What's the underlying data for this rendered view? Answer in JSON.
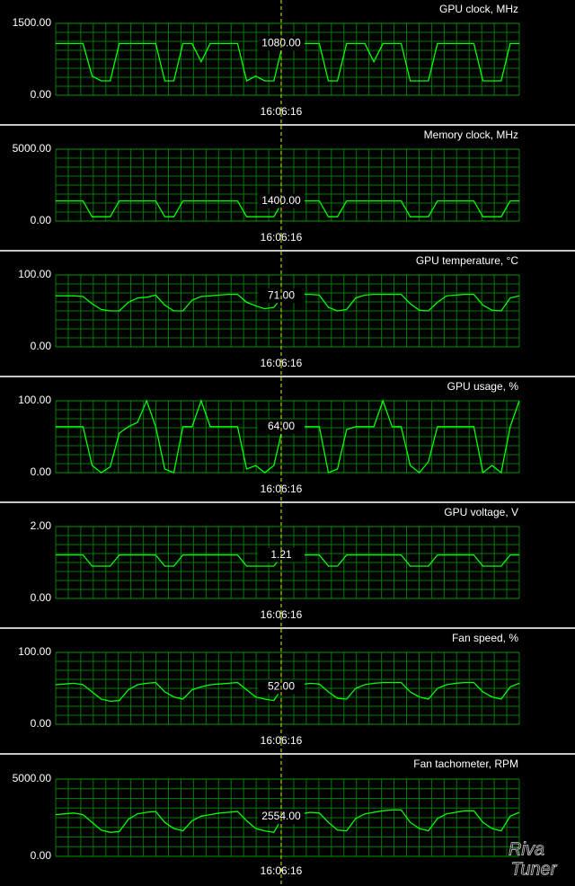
{
  "chart_data": [
    {
      "type": "line",
      "title": "GPU clock, MHz",
      "color": "#00ff00",
      "ylim": [
        0,
        1500
      ],
      "yticks": [
        {
          "value": 0,
          "label": "0.00"
        },
        {
          "value": 1500,
          "label": "1500.00"
        }
      ],
      "values": [
        1080,
        1080,
        1080,
        1080,
        400,
        300,
        300,
        1080,
        1080,
        1080,
        1080,
        1080,
        300,
        300,
        1080,
        1080,
        700,
        1080,
        1080,
        1080,
        1080,
        300,
        400,
        300,
        300,
        1080,
        1080,
        1080,
        1080,
        1080,
        300,
        300,
        1080,
        1080,
        1080,
        700,
        1080,
        1080,
        1080,
        300,
        300,
        300,
        1080,
        1080,
        1080,
        1080,
        1080,
        300,
        300,
        300,
        1080,
        1080
      ],
      "cursor_value": {
        "value": 1080,
        "label": "1080.00"
      },
      "cursor_time": "16:06:16"
    },
    {
      "type": "line",
      "title": "Memory clock, MHz",
      "color": "#00ff00",
      "ylim": [
        0,
        5000
      ],
      "yticks": [
        {
          "value": 0,
          "label": "0.00"
        },
        {
          "value": 5000,
          "label": "5000.00"
        }
      ],
      "values": [
        1400,
        1400,
        1400,
        1400,
        300,
        300,
        300,
        1400,
        1400,
        1400,
        1400,
        1400,
        300,
        300,
        1400,
        1400,
        1400,
        1400,
        1400,
        1400,
        1400,
        300,
        300,
        300,
        300,
        1400,
        1400,
        1400,
        1400,
        1400,
        300,
        300,
        1400,
        1400,
        1400,
        1400,
        1400,
        1400,
        1400,
        300,
        300,
        300,
        1400,
        1400,
        1400,
        1400,
        1400,
        300,
        300,
        300,
        1400,
        1400
      ],
      "cursor_value": {
        "value": 1400,
        "label": "1400.00"
      },
      "cursor_time": "16:06:16"
    },
    {
      "type": "line",
      "title": "GPU temperature, °C",
      "color": "#00ff00",
      "ylim": [
        0,
        100
      ],
      "yticks": [
        {
          "value": 0,
          "label": "0.00"
        },
        {
          "value": 100,
          "label": "100.00"
        }
      ],
      "values": [
        71,
        71,
        71,
        70,
        60,
        52,
        50,
        50,
        62,
        68,
        69,
        72,
        58,
        50,
        50,
        65,
        70,
        71,
        72,
        73,
        73,
        62,
        57,
        53,
        55,
        71,
        73,
        73,
        73,
        72,
        55,
        50,
        52,
        68,
        72,
        73,
        73,
        73,
        73,
        60,
        51,
        50,
        62,
        71,
        72,
        73,
        73,
        58,
        51,
        50,
        68,
        71
      ],
      "cursor_value": {
        "value": 71,
        "label": "71.00"
      },
      "cursor_time": "16:06:16"
    },
    {
      "type": "line",
      "title": "GPU usage, %",
      "color": "#00ff00",
      "ylim": [
        0,
        100
      ],
      "yticks": [
        {
          "value": 0,
          "label": "0.00"
        },
        {
          "value": 100,
          "label": "100.00"
        }
      ],
      "values": [
        64,
        64,
        64,
        64,
        10,
        0,
        8,
        55,
        64,
        70,
        100,
        64,
        5,
        0,
        64,
        64,
        100,
        64,
        64,
        64,
        64,
        5,
        10,
        0,
        10,
        64,
        64,
        64,
        64,
        64,
        0,
        5,
        60,
        64,
        64,
        64,
        100,
        64,
        64,
        10,
        0,
        15,
        64,
        64,
        64,
        64,
        64,
        0,
        10,
        0,
        64,
        100
      ],
      "cursor_value": {
        "value": 64,
        "label": "64.00"
      },
      "cursor_time": "16:06:16"
    },
    {
      "type": "line",
      "title": "GPU voltage, V",
      "color": "#00ff00",
      "ylim": [
        0,
        2
      ],
      "yticks": [
        {
          "value": 0,
          "label": "0.00"
        },
        {
          "value": 2,
          "label": "2.00"
        }
      ],
      "values": [
        1.21,
        1.21,
        1.21,
        1.21,
        0.9,
        0.9,
        0.9,
        1.21,
        1.21,
        1.21,
        1.21,
        1.21,
        0.9,
        0.9,
        1.21,
        1.21,
        1.21,
        1.21,
        1.21,
        1.21,
        1.21,
        0.9,
        0.9,
        0.9,
        0.9,
        1.21,
        1.21,
        1.21,
        1.21,
        1.21,
        0.9,
        0.9,
        1.21,
        1.21,
        1.21,
        1.21,
        1.21,
        1.21,
        1.21,
        0.9,
        0.9,
        0.9,
        1.21,
        1.21,
        1.21,
        1.21,
        1.21,
        0.9,
        0.9,
        0.9,
        1.21,
        1.21
      ],
      "cursor_value": {
        "value": 1.21,
        "label": "1.21"
      },
      "cursor_time": "16:06:16"
    },
    {
      "type": "line",
      "title": "Fan speed, %",
      "color": "#00ff00",
      "ylim": [
        0,
        100
      ],
      "yticks": [
        {
          "value": 0,
          "label": "0.00"
        },
        {
          "value": 100,
          "label": "100.00"
        }
      ],
      "values": [
        55,
        56,
        57,
        55,
        45,
        35,
        32,
        33,
        48,
        55,
        57,
        58,
        45,
        38,
        35,
        48,
        52,
        55,
        56,
        57,
        58,
        48,
        38,
        35,
        33,
        52,
        55,
        55,
        57,
        56,
        45,
        36,
        35,
        50,
        55,
        57,
        58,
        58,
        58,
        45,
        38,
        35,
        50,
        55,
        57,
        58,
        58,
        45,
        38,
        35,
        52,
        57
      ],
      "cursor_value": {
        "value": 52,
        "label": "52.00"
      },
      "cursor_time": "16:06:16"
    },
    {
      "type": "line",
      "title": "Fan tachometer, RPM",
      "color": "#00ff00",
      "ylim": [
        0,
        5000
      ],
      "yticks": [
        {
          "value": 0,
          "label": "0.00"
        },
        {
          "value": 5000,
          "label": "5000.00"
        }
      ],
      "values": [
        2700,
        2750,
        2800,
        2700,
        2200,
        1700,
        1550,
        1600,
        2400,
        2750,
        2850,
        2900,
        2200,
        1800,
        1650,
        2300,
        2600,
        2700,
        2800,
        2850,
        2900,
        2300,
        1800,
        1650,
        1550,
        2554,
        2700,
        2750,
        2850,
        2800,
        2200,
        1700,
        1650,
        2450,
        2750,
        2850,
        2950,
        3000,
        3000,
        2200,
        1800,
        1650,
        2450,
        2750,
        2850,
        2950,
        2950,
        2200,
        1800,
        1650,
        2600,
        2850
      ],
      "cursor_value": {
        "value": 2554,
        "label": "2554.00"
      },
      "cursor_time": "16:06:16"
    }
  ],
  "watermark": {
    "line1": "Riva",
    "line2": "Tuner"
  }
}
